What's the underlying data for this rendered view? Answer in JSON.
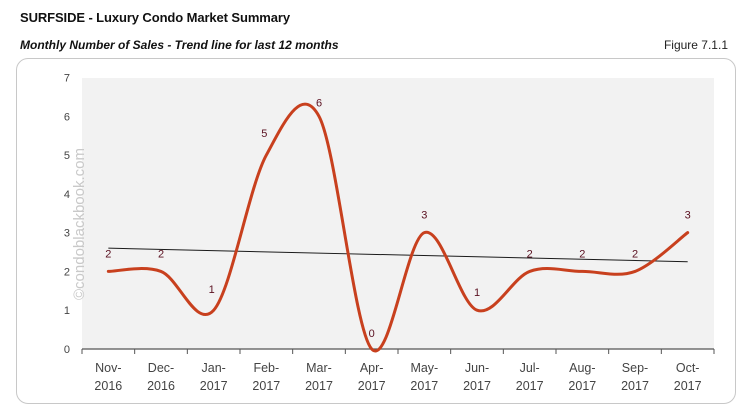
{
  "header": {
    "title": "SURFSIDE - Luxury Condo Market Summary",
    "subtitle": "Monthly Number of Sales - Trend line for last 12 months",
    "figure_label": "Figure 7.1.1"
  },
  "watermark": "©condoblackbook.com",
  "colors": {
    "series": "#c8401e",
    "trend": "#1a1a1a",
    "plot_bg": "#f2f2f2",
    "axis": "#555555",
    "data_label": "#5a1020"
  },
  "chart_data": {
    "type": "line",
    "title": "Monthly Number of Sales - Trend line for last 12 months",
    "xlabel": "",
    "ylabel": "",
    "categories": [
      "Nov-2016",
      "Dec-2016",
      "Jan-2017",
      "Feb-2017",
      "Mar-2017",
      "Apr-2017",
      "May-2017",
      "Jun-2017",
      "Jul-2017",
      "Aug-2017",
      "Sep-2017",
      "Oct-2017"
    ],
    "x_tick_labels": [
      [
        "Nov-",
        "2016"
      ],
      [
        "Dec-",
        "2016"
      ],
      [
        "Jan-",
        "2017"
      ],
      [
        "Feb-",
        "2017"
      ],
      [
        "Mar-",
        "2017"
      ],
      [
        "Apr-",
        "2017"
      ],
      [
        "May-",
        "2017"
      ],
      [
        "Jun-",
        "2017"
      ],
      [
        "Jul-",
        "2017"
      ],
      [
        "Aug-",
        "2017"
      ],
      [
        "Sep-",
        "2017"
      ],
      [
        "Oct-",
        "2017"
      ]
    ],
    "series": [
      {
        "name": "Monthly Number of Sales",
        "values": [
          2,
          2,
          1,
          5,
          6,
          0,
          3,
          1,
          2,
          2,
          2,
          3
        ],
        "smoothed": true,
        "data_labels": true
      },
      {
        "name": "Linear trend",
        "type": "trendline",
        "start": 2.6,
        "end": 2.25
      }
    ],
    "ylim": [
      0,
      7
    ],
    "y_ticks": [
      0,
      1,
      2,
      3,
      4,
      5,
      6,
      7
    ],
    "grid": false,
    "legend": "none"
  }
}
